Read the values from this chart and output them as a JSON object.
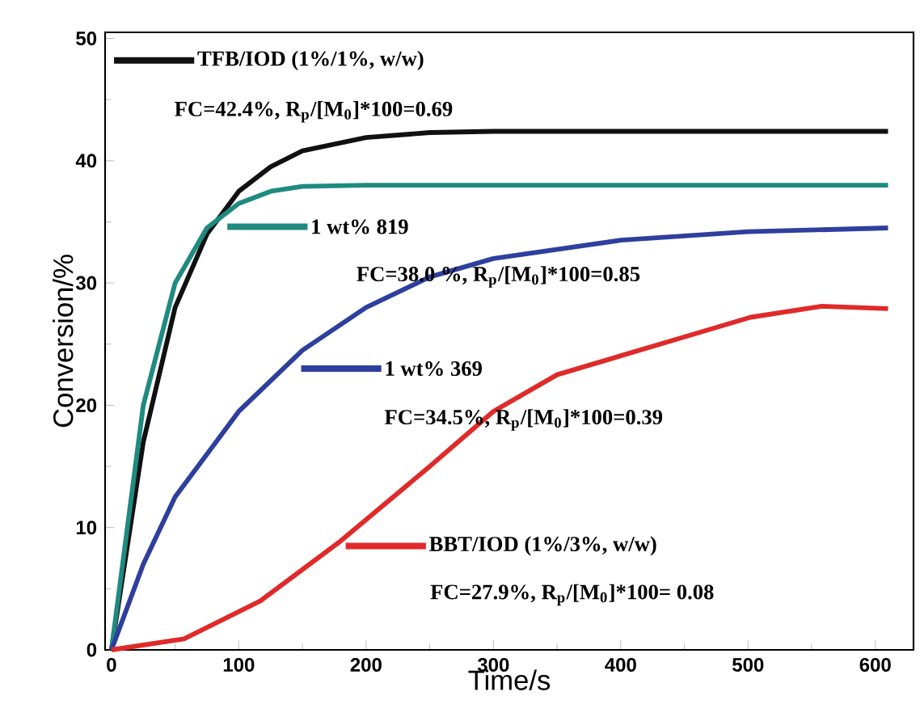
{
  "chart_data": {
    "type": "line",
    "xlabel": "Time/s",
    "ylabel": "Conversion/%",
    "xlim": [
      -5,
      630
    ],
    "ylim": [
      0,
      50.5
    ],
    "xticks": [
      0,
      100,
      200,
      300,
      400,
      500,
      600
    ],
    "yticks": [
      0,
      10,
      20,
      30,
      40,
      50
    ],
    "grid": false,
    "legend": "left",
    "line_style": "solid",
    "series": [
      {
        "name": "TFB/IOD (1%/1%, w/w)",
        "color": "#111111",
        "x": [
          0,
          25,
          50,
          75,
          100,
          125,
          150,
          200,
          250,
          300,
          400,
          610
        ],
        "values": [
          0,
          17,
          28,
          34,
          37.5,
          39.5,
          40.8,
          41.9,
          42.3,
          42.4,
          42.4,
          42.4
        ]
      },
      {
        "name": "1 wt% 819",
        "color": "#1f8a80",
        "x": [
          0,
          25,
          50,
          75,
          100,
          125,
          150,
          200,
          400,
          610
        ],
        "values": [
          0,
          20,
          30,
          34.5,
          36.5,
          37.5,
          37.9,
          38,
          38,
          38
        ]
      },
      {
        "name": "1 wt% 369",
        "color": "#2e3f9e",
        "x": [
          0,
          25,
          50,
          100,
          150,
          200,
          250,
          300,
          400,
          500,
          610
        ],
        "values": [
          0,
          7,
          12.5,
          19.5,
          24.5,
          28,
          30.5,
          32,
          33.5,
          34.2,
          34.5
        ]
      },
      {
        "name": "BBT/IOD (1%/3%, w/w)",
        "color": "#e02a2a",
        "x": [
          0,
          57,
          117,
          180,
          250,
          300,
          350,
          447,
          502,
          558,
          610
        ],
        "values": [
          0,
          0.9,
          4,
          8.9,
          15,
          19.5,
          22.5,
          25.5,
          27.2,
          28.1,
          27.9
        ]
      }
    ],
    "annotations": [
      "FC=42.4%, R$_{p}$/[M$_{0}$]*100=0.69",
      "FC=38.0 %, R$_{p}$/[M$_{0}$]*100=0.85",
      "FC=34.5%, R$_{p}$/[M$_{0}$]*100=0.39",
      "FC=27.9%, R$_{p}$/[M$_{0}$]*100= 0.08"
    ]
  }
}
